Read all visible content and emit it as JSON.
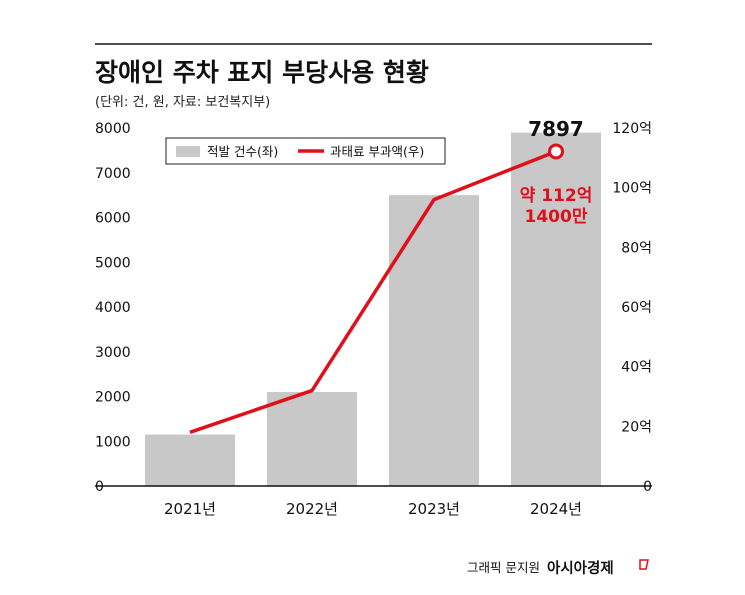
{
  "chart_data": {
    "type": "bar",
    "title": "장애인 주차 표지 부당사용 현황",
    "subtitle": "(단위: 건, 원, 자료: 보건복지부)",
    "categories": [
      "2021년",
      "2022년",
      "2023년",
      "2024년"
    ],
    "series": [
      {
        "name": "적발 건수(좌)",
        "type": "bar",
        "axis": "left",
        "color": "#c8c8c8",
        "values": [
          1150,
          2100,
          6500,
          7897
        ]
      },
      {
        "name": "과태료 부과액(우)",
        "type": "line",
        "axis": "right",
        "color": "#e10f1a",
        "values": [
          18,
          32,
          96,
          112.14
        ]
      }
    ],
    "left_axis": {
      "ylim": [
        0,
        8000
      ],
      "ticks": [
        "0",
        "1000",
        "2000",
        "3000",
        "4000",
        "5000",
        "6000",
        "7000",
        "8000"
      ]
    },
    "right_axis": {
      "ylim": [
        0,
        120
      ],
      "ticks": [
        "0",
        "20억",
        "40억",
        "60억",
        "80억",
        "100억",
        "120억"
      ]
    },
    "annotations": {
      "bar_value": "7897",
      "line_value_line1": "약 112억",
      "line_value_line2": "1400만"
    },
    "legend_position": "top-left",
    "grid": false
  },
  "credit": {
    "text": "그래픽 문지원",
    "brand": "아시아경제"
  },
  "colors": {
    "bar": "#c8c8c8",
    "line": "#e10f1a",
    "axis": "#222222"
  }
}
